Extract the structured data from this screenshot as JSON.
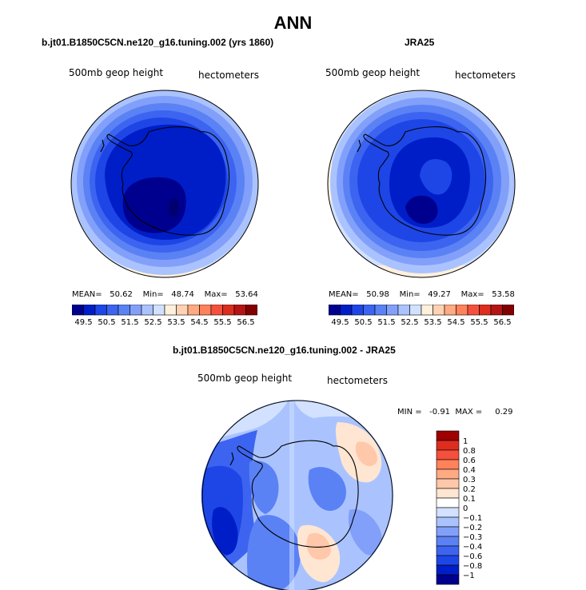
{
  "page_title": "ANN",
  "chart_data": [
    {
      "type": "contour-map",
      "projection": "polar-stereographic-south",
      "title": "b.jt01.B1850C5CN.ne120_g16.tuning.002 (yrs 1860)",
      "field_label": "500mb geop height",
      "units": "hectometers",
      "stats": {
        "mean_label": "MEAN=",
        "mean": "50.62",
        "min_label": "Min=",
        "min": "48.74",
        "max_label": "Max=",
        "max": "53.64"
      },
      "colorbar_ticks": [
        "49.5",
        "50.5",
        "51.5",
        "52.5",
        "53.5",
        "54.5",
        "55.5",
        "56.5"
      ]
    },
    {
      "type": "contour-map",
      "projection": "polar-stereographic-south",
      "title": "JRA25",
      "field_label": "500mb geop height",
      "units": "hectometers",
      "stats": {
        "mean_label": "MEAN=",
        "mean": "50.98",
        "min_label": "Min=",
        "min": "49.27",
        "max_label": "Max=",
        "max": "53.58"
      },
      "colorbar_ticks": [
        "49.5",
        "50.5",
        "51.5",
        "52.5",
        "53.5",
        "54.5",
        "55.5",
        "56.5"
      ]
    },
    {
      "type": "contour-map",
      "projection": "polar-stereographic-south",
      "title": "b.jt01.B1850C5CN.ne120_g16.tuning.002 - JRA25",
      "field_label": "500mb geop height",
      "units": "hectometers",
      "stats": {
        "min_label": "MIN =",
        "min": "-0.91",
        "max_label": "MAX =",
        "max": "0.29"
      },
      "colorbar_levels": [
        "1",
        "0.8",
        "0.6",
        "0.4",
        "0.3",
        "0.2",
        "0.1",
        "0",
        "−0.1",
        "−0.2",
        "−0.3",
        "−0.4",
        "−0.6",
        "−0.8",
        "−1"
      ]
    }
  ],
  "colors": {
    "abs_scale": [
      "#00008e",
      "#001ec8",
      "#1e46e6",
      "#3c64f0",
      "#5a82f5",
      "#82a0fa",
      "#aac3ff",
      "#d2e1ff",
      "#fff0dc",
      "#ffd2b4",
      "#ffaa82",
      "#ff825a",
      "#f5503c",
      "#dc2d1e",
      "#b41414",
      "#820000"
    ],
    "diff_scale": [
      "#00008e",
      "#001ec8",
      "#1e46e6",
      "#3c64f0",
      "#5a82f5",
      "#82a0fa",
      "#aac3ff",
      "#d2e1ff",
      "#ffffff",
      "#ffe6d2",
      "#ffc8aa",
      "#ffaa82",
      "#ff825a",
      "#f5503c",
      "#dc2d1e",
      "#9e0000"
    ]
  }
}
